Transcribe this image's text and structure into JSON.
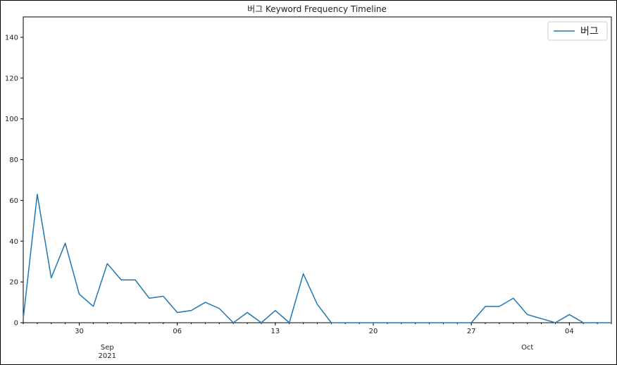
{
  "chart_data": {
    "type": "line",
    "title": "버그 Keyword Frequency Timeline",
    "xlabel": "",
    "ylabel": "",
    "x": [
      "2021-08-26",
      "2021-08-27",
      "2021-08-28",
      "2021-08-29",
      "2021-08-30",
      "2021-08-31",
      "2021-09-01",
      "2021-09-02",
      "2021-09-03",
      "2021-09-04",
      "2021-09-05",
      "2021-09-06",
      "2021-09-07",
      "2021-09-08",
      "2021-09-09",
      "2021-09-10",
      "2021-09-11",
      "2021-09-12",
      "2021-09-13",
      "2021-09-14",
      "2021-09-15",
      "2021-09-16",
      "2021-09-17",
      "2021-09-18",
      "2021-09-19",
      "2021-09-20",
      "2021-09-21",
      "2021-09-22",
      "2021-09-23",
      "2021-09-24",
      "2021-09-25",
      "2021-09-26",
      "2021-09-27",
      "2021-09-28",
      "2021-09-29",
      "2021-09-30",
      "2021-10-01",
      "2021-10-02",
      "2021-10-03",
      "2021-10-04",
      "2021-10-05",
      "2021-10-06",
      "2021-10-07"
    ],
    "series": [
      {
        "name": "버그",
        "color": "#1f77b4",
        "values": [
          2,
          63,
          22,
          39,
          14,
          8,
          29,
          21,
          21,
          12,
          13,
          5,
          6,
          10,
          7,
          0,
          5,
          0,
          6,
          0,
          24,
          9,
          0,
          0,
          0,
          0,
          0,
          0,
          0,
          0,
          0,
          0,
          0,
          8,
          8,
          12,
          4,
          2,
          0,
          4,
          0,
          0,
          0
        ]
      }
    ],
    "ylim": [
      0,
      150
    ],
    "yticks": [
      "0",
      "20",
      "40",
      "60",
      "80",
      "100",
      "120",
      "140"
    ],
    "xticks": [
      "30",
      "06",
      "13",
      "20",
      "27",
      "04"
    ],
    "month_labels": [
      {
        "label": "Sep",
        "year": "2021"
      },
      {
        "label": "Oct",
        "year": ""
      }
    ],
    "legend_position": "top-right",
    "grid": false
  }
}
